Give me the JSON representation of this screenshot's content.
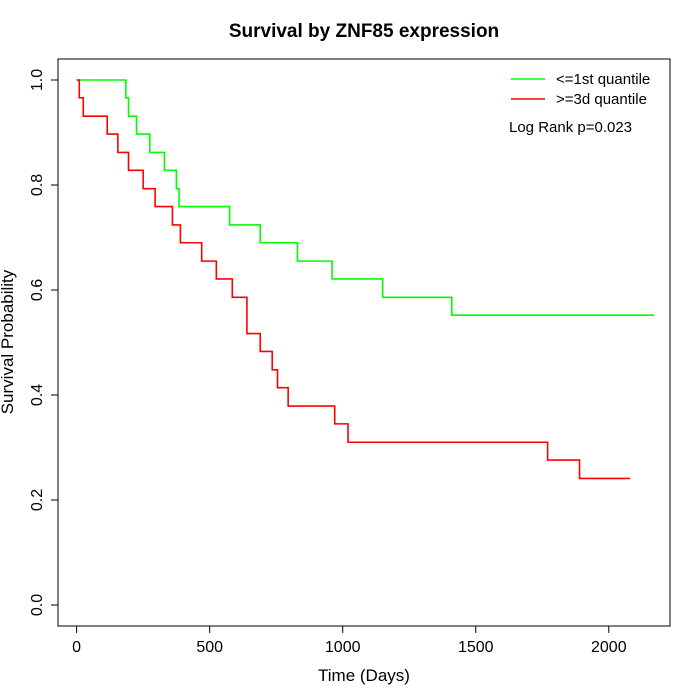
{
  "chart_data": {
    "type": "line",
    "title": "Survival by ZNF85 expression",
    "xlabel": "Time (Days)",
    "ylabel": "Survival Probability",
    "xlim": [
      -70,
      2230
    ],
    "ylim": [
      -0.04,
      1.04
    ],
    "x_ticks": [
      0,
      500,
      1000,
      1500,
      2000
    ],
    "y_ticks": [
      0.0,
      0.2,
      0.4,
      0.6,
      0.8,
      1.0
    ],
    "x_tick_labels": [
      "0",
      "500",
      "1000",
      "1500",
      "2000"
    ],
    "y_tick_labels": [
      "0.0",
      "0.2",
      "0.4",
      "0.6",
      "0.8",
      "1.0"
    ],
    "grid": false,
    "legend_position": "top-right",
    "annotation": "Log Rank p=0.023",
    "series": [
      {
        "name": "<=1st quantile",
        "color": "#00ff00",
        "step": true,
        "x": [
          0,
          185,
          195,
          225,
          240,
          275,
          330,
          345,
          375,
          385,
          575,
          690,
          830,
          960,
          1150,
          1410,
          2170
        ],
        "y": [
          1.0,
          0.966,
          0.931,
          0.897,
          0.897,
          0.862,
          0.828,
          0.828,
          0.793,
          0.759,
          0.724,
          0.69,
          0.655,
          0.621,
          0.586,
          0.552,
          0.552
        ]
      },
      {
        "name": ">=3d quantile",
        "color": "#ff0000",
        "step": true,
        "x": [
          0,
          10,
          25,
          115,
          155,
          195,
          250,
          295,
          360,
          390,
          470,
          525,
          585,
          640,
          690,
          735,
          755,
          795,
          970,
          1020,
          1770,
          1890,
          2080
        ],
        "y": [
          1.0,
          0.966,
          0.931,
          0.897,
          0.862,
          0.828,
          0.793,
          0.759,
          0.724,
          0.69,
          0.655,
          0.621,
          0.586,
          0.517,
          0.483,
          0.448,
          0.414,
          0.379,
          0.345,
          0.31,
          0.276,
          0.241,
          0.241
        ]
      }
    ]
  }
}
